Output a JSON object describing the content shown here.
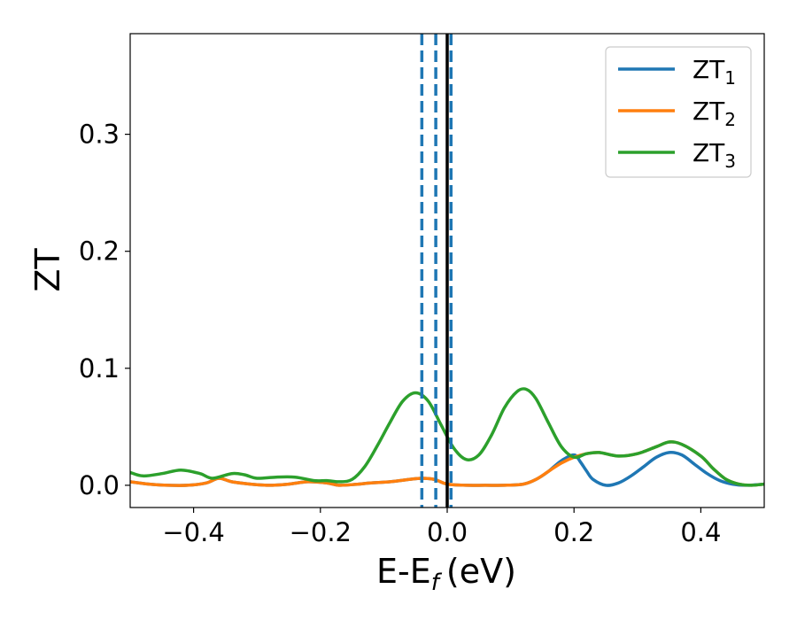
{
  "chart_data": {
    "type": "line",
    "title": "",
    "xlabel": "E-E",
    "xlabel_sub": "f",
    "xlabel_unit": "(eV)",
    "ylabel": "ZT",
    "xlim": [
      -0.5,
      0.5
    ],
    "ylim": [
      -0.019,
      0.386
    ],
    "x_ticks": [
      -0.4,
      -0.2,
      0.0,
      0.2,
      0.4
    ],
    "x_tick_labels": [
      "−0.4",
      "−0.2",
      "0.0",
      "0.2",
      "0.4"
    ],
    "y_ticks": [
      0.0,
      0.1,
      0.2,
      0.3
    ],
    "y_tick_labels": [
      "0.0",
      "0.1",
      "0.2",
      "0.3"
    ],
    "grid": false,
    "legend_position": "top-right",
    "series": [
      {
        "name": "ZT",
        "sub": "1",
        "color": "#1f77b4",
        "points": [
          [
            -0.5,
            0.003
          ],
          [
            -0.47,
            0.001
          ],
          [
            -0.44,
            0.0
          ],
          [
            -0.41,
            0.0
          ],
          [
            -0.38,
            0.002
          ],
          [
            -0.36,
            0.006
          ],
          [
            -0.34,
            0.003
          ],
          [
            -0.31,
            0.001
          ],
          [
            -0.28,
            0.0
          ],
          [
            -0.25,
            0.001
          ],
          [
            -0.22,
            0.003
          ],
          [
            -0.19,
            0.002
          ],
          [
            -0.17,
            0.0
          ],
          [
            -0.14,
            0.001
          ],
          [
            -0.12,
            0.002
          ],
          [
            -0.09,
            0.003
          ],
          [
            -0.06,
            0.005
          ],
          [
            -0.04,
            0.006
          ],
          [
            -0.02,
            0.005
          ],
          [
            0.0,
            0.001
          ],
          [
            0.03,
            0.0
          ],
          [
            0.06,
            0.0
          ],
          [
            0.09,
            0.0
          ],
          [
            0.12,
            0.001
          ],
          [
            0.14,
            0.005
          ],
          [
            0.16,
            0.012
          ],
          [
            0.18,
            0.021
          ],
          [
            0.2,
            0.026
          ],
          [
            0.21,
            0.02
          ],
          [
            0.22,
            0.012
          ],
          [
            0.23,
            0.005
          ],
          [
            0.25,
            0.0
          ],
          [
            0.27,
            0.002
          ],
          [
            0.29,
            0.008
          ],
          [
            0.31,
            0.016
          ],
          [
            0.33,
            0.024
          ],
          [
            0.35,
            0.028
          ],
          [
            0.37,
            0.026
          ],
          [
            0.39,
            0.018
          ],
          [
            0.41,
            0.01
          ],
          [
            0.43,
            0.004
          ],
          [
            0.45,
            0.001
          ],
          [
            0.47,
            0.0
          ],
          [
            0.5,
            0.001
          ]
        ]
      },
      {
        "name": "ZT",
        "sub": "2",
        "color": "#ff7f0e",
        "points": [
          [
            -0.5,
            0.003
          ],
          [
            -0.47,
            0.001
          ],
          [
            -0.44,
            0.0
          ],
          [
            -0.41,
            0.0
          ],
          [
            -0.38,
            0.002
          ],
          [
            -0.36,
            0.006
          ],
          [
            -0.34,
            0.003
          ],
          [
            -0.31,
            0.001
          ],
          [
            -0.28,
            0.0
          ],
          [
            -0.25,
            0.001
          ],
          [
            -0.22,
            0.003
          ],
          [
            -0.19,
            0.002
          ],
          [
            -0.17,
            0.0
          ],
          [
            -0.14,
            0.001
          ],
          [
            -0.12,
            0.002
          ],
          [
            -0.09,
            0.003
          ],
          [
            -0.06,
            0.005
          ],
          [
            -0.04,
            0.006
          ],
          [
            -0.02,
            0.005
          ],
          [
            0.0,
            0.001
          ],
          [
            0.03,
            0.0
          ],
          [
            0.06,
            0.0
          ],
          [
            0.09,
            0.0
          ],
          [
            0.12,
            0.001
          ],
          [
            0.14,
            0.005
          ],
          [
            0.16,
            0.012
          ],
          [
            0.18,
            0.019
          ],
          [
            0.2,
            0.024
          ],
          [
            0.22,
            0.027
          ],
          [
            0.24,
            0.028
          ],
          [
            0.27,
            0.025
          ],
          [
            0.3,
            0.027
          ],
          [
            0.33,
            0.033
          ],
          [
            0.35,
            0.037
          ],
          [
            0.37,
            0.035
          ],
          [
            0.4,
            0.025
          ],
          [
            0.42,
            0.014
          ],
          [
            0.44,
            0.005
          ],
          [
            0.46,
            0.001
          ],
          [
            0.48,
            0.0
          ],
          [
            0.5,
            0.001
          ]
        ]
      },
      {
        "name": "ZT",
        "sub": "3",
        "color": "#2ca02c",
        "points": [
          [
            -0.5,
            0.011
          ],
          [
            -0.48,
            0.008
          ],
          [
            -0.45,
            0.01
          ],
          [
            -0.42,
            0.013
          ],
          [
            -0.39,
            0.01
          ],
          [
            -0.37,
            0.006
          ],
          [
            -0.34,
            0.01
          ],
          [
            -0.32,
            0.009
          ],
          [
            -0.3,
            0.006
          ],
          [
            -0.27,
            0.007
          ],
          [
            -0.24,
            0.007
          ],
          [
            -0.21,
            0.004
          ],
          [
            -0.19,
            0.004
          ],
          [
            -0.17,
            0.003
          ],
          [
            -0.15,
            0.005
          ],
          [
            -0.13,
            0.016
          ],
          [
            -0.11,
            0.034
          ],
          [
            -0.09,
            0.054
          ],
          [
            -0.07,
            0.072
          ],
          [
            -0.05,
            0.079
          ],
          [
            -0.03,
            0.072
          ],
          [
            -0.01,
            0.052
          ],
          [
            0.01,
            0.032
          ],
          [
            0.03,
            0.022
          ],
          [
            0.05,
            0.026
          ],
          [
            0.07,
            0.043
          ],
          [
            0.09,
            0.066
          ],
          [
            0.11,
            0.08
          ],
          [
            0.125,
            0.082
          ],
          [
            0.14,
            0.074
          ],
          [
            0.16,
            0.053
          ],
          [
            0.18,
            0.033
          ],
          [
            0.2,
            0.024
          ],
          [
            0.22,
            0.027
          ],
          [
            0.24,
            0.028
          ],
          [
            0.27,
            0.025
          ],
          [
            0.3,
            0.027
          ],
          [
            0.33,
            0.033
          ],
          [
            0.35,
            0.037
          ],
          [
            0.37,
            0.035
          ],
          [
            0.4,
            0.025
          ],
          [
            0.42,
            0.014
          ],
          [
            0.44,
            0.005
          ],
          [
            0.46,
            0.001
          ],
          [
            0.48,
            0.0
          ],
          [
            0.5,
            0.001
          ]
        ]
      }
    ],
    "vertical_lines": [
      {
        "x": -0.04,
        "style": "dashed",
        "color": "#1f77b4"
      },
      {
        "x": -0.018,
        "style": "dashed",
        "color": "#1f77b4"
      },
      {
        "x": 0.006,
        "style": "dashed",
        "color": "#1f77b4"
      },
      {
        "x": 0.0,
        "style": "solid",
        "color": "#000000"
      }
    ]
  }
}
